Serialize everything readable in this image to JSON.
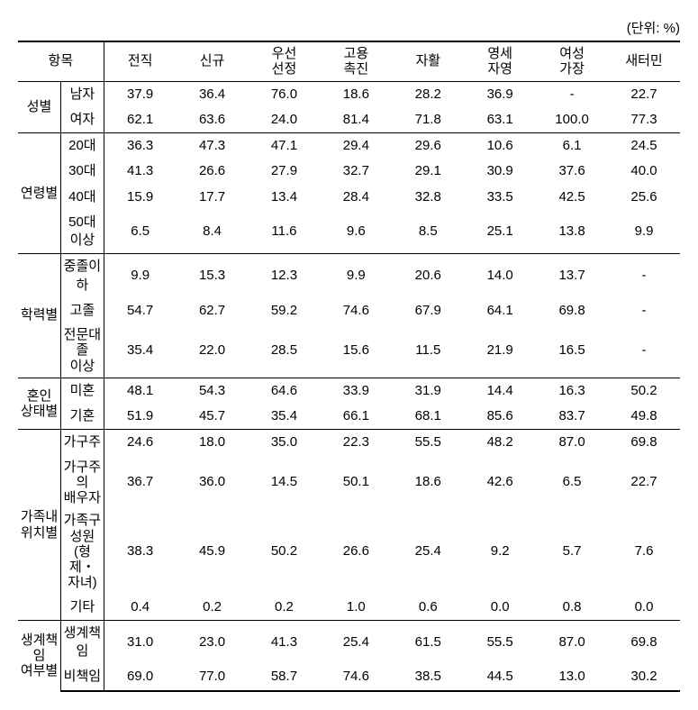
{
  "unit_label": "(단위: %)",
  "headers": {
    "group": "항목",
    "cols": [
      "전직",
      "신규",
      "우선\n선정",
      "고용\n촉진",
      "자활",
      "영세\n자영",
      "여성\n가장",
      "새터민"
    ]
  },
  "groups": [
    {
      "label": "성별",
      "rows": [
        {
          "label": "남자",
          "vals": [
            "37.9",
            "36.4",
            "76.0",
            "18.6",
            "28.2",
            "36.9",
            "-",
            "22.7"
          ]
        },
        {
          "label": "여자",
          "vals": [
            "62.1",
            "63.6",
            "24.0",
            "81.4",
            "71.8",
            "63.1",
            "100.0",
            "77.3"
          ]
        }
      ]
    },
    {
      "label": "연령별",
      "rows": [
        {
          "label": "20대",
          "vals": [
            "36.3",
            "47.3",
            "47.1",
            "29.4",
            "29.6",
            "10.6",
            "6.1",
            "24.5"
          ]
        },
        {
          "label": "30대",
          "vals": [
            "41.3",
            "26.6",
            "27.9",
            "32.7",
            "29.1",
            "30.9",
            "37.6",
            "40.0"
          ]
        },
        {
          "label": "40대",
          "vals": [
            "15.9",
            "17.7",
            "13.4",
            "28.4",
            "32.8",
            "33.5",
            "42.5",
            "25.6"
          ]
        },
        {
          "label": "50대 이상",
          "vals": [
            "6.5",
            "8.4",
            "11.6",
            "9.6",
            "8.5",
            "25.1",
            "13.8",
            "9.9"
          ]
        }
      ]
    },
    {
      "label": "학력별",
      "rows": [
        {
          "label": "중졸이하",
          "vals": [
            "9.9",
            "15.3",
            "12.3",
            "9.9",
            "20.6",
            "14.0",
            "13.7",
            "-"
          ]
        },
        {
          "label": "고졸",
          "vals": [
            "54.7",
            "62.7",
            "59.2",
            "74.6",
            "67.9",
            "64.1",
            "69.8",
            "-"
          ]
        },
        {
          "label": "전문대졸\n이상",
          "vals": [
            "35.4",
            "22.0",
            "28.5",
            "15.6",
            "11.5",
            "21.9",
            "16.5",
            "-"
          ]
        }
      ]
    },
    {
      "label": "혼인\n상태별",
      "rows": [
        {
          "label": "미혼",
          "vals": [
            "48.1",
            "54.3",
            "64.6",
            "33.9",
            "31.9",
            "14.4",
            "16.3",
            "50.2"
          ]
        },
        {
          "label": "기혼",
          "vals": [
            "51.9",
            "45.7",
            "35.4",
            "66.1",
            "68.1",
            "85.6",
            "83.7",
            "49.8"
          ]
        }
      ]
    },
    {
      "label": "가족내\n위치별",
      "rows": [
        {
          "label": "가구주",
          "vals": [
            "24.6",
            "18.0",
            "35.0",
            "22.3",
            "55.5",
            "48.2",
            "87.0",
            "69.8"
          ]
        },
        {
          "label": "가구주의\n배우자",
          "vals": [
            "36.7",
            "36.0",
            "14.5",
            "50.1",
            "18.6",
            "42.6",
            "6.5",
            "22.7"
          ]
        },
        {
          "label": "가족구성원\n(형제・자녀)",
          "vals": [
            "38.3",
            "45.9",
            "50.2",
            "26.6",
            "25.4",
            "9.2",
            "5.7",
            "7.6"
          ]
        },
        {
          "label": "기타",
          "vals": [
            "0.4",
            "0.2",
            "0.2",
            "1.0",
            "0.6",
            "0.0",
            "0.8",
            "0.0"
          ]
        }
      ]
    },
    {
      "label": "생계책임\n여부별",
      "rows": [
        {
          "label": "생계책임",
          "vals": [
            "31.0",
            "23.0",
            "41.3",
            "25.4",
            "61.5",
            "55.5",
            "87.0",
            "69.8"
          ]
        },
        {
          "label": "비책임",
          "vals": [
            "69.0",
            "77.0",
            "58.7",
            "74.6",
            "38.5",
            "44.5",
            "13.0",
            "30.2"
          ]
        }
      ]
    }
  ]
}
